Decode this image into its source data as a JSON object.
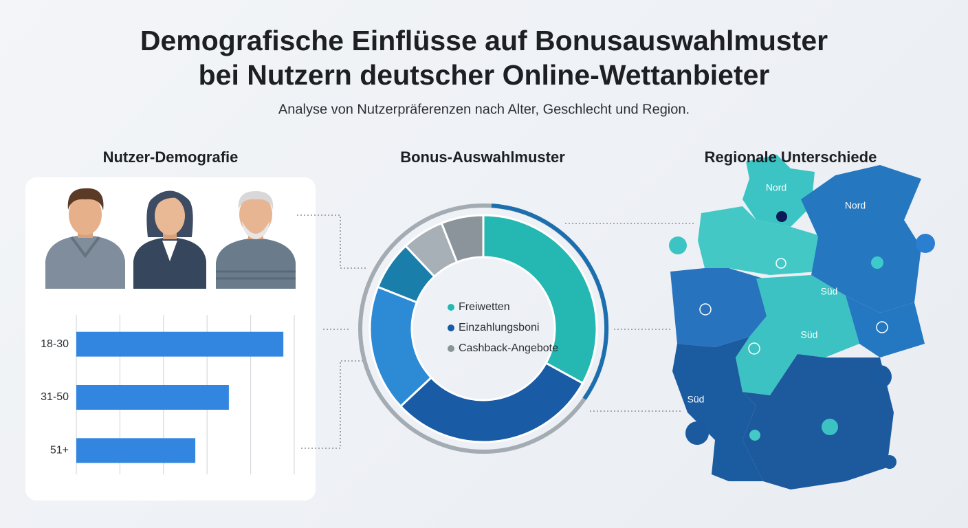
{
  "header": {
    "title_line1": "Demografische Einflüsse auf Bonusauswahlmuster",
    "title_line2": "bei Nutzern deutscher Online-Wettanbieter",
    "subtitle": "Analyse von Nutzerpräferenzen nach Alter, Geschlecht und Region."
  },
  "sections": [
    "Nutzer-Demografie",
    "Bonus-Auswahlmuster",
    "Regionale Unterschiede"
  ],
  "chart_data": [
    {
      "type": "bar",
      "orientation": "horizontal",
      "categories": [
        "18-30",
        "31-50",
        "51+"
      ],
      "values": [
        4.75,
        3.5,
        2.73
      ],
      "color": "#3386e0",
      "xlim": [
        0,
        5
      ],
      "xticks": [
        0,
        1,
        2,
        3,
        4,
        5
      ],
      "grid": true
    },
    {
      "type": "donut",
      "values": [
        33,
        30,
        18,
        7,
        6,
        6
      ],
      "colors": [
        "#25b8b2",
        "#1a5ba6",
        "#2d8ad4",
        "#1a7eab",
        "#a7afb7",
        "#8c949b"
      ],
      "legend": [
        {
          "label": "Freiwetten",
          "color": "#25b8b2"
        },
        {
          "label": "Einzahlungsboni",
          "color": "#1a5ba6"
        },
        {
          "label": "Cashback-Angebote",
          "color": "#8c949b"
        }
      ]
    }
  ],
  "map": {
    "labels": [
      "Nord",
      "Nord",
      "Süd",
      "Süd",
      "Süd"
    ]
  }
}
